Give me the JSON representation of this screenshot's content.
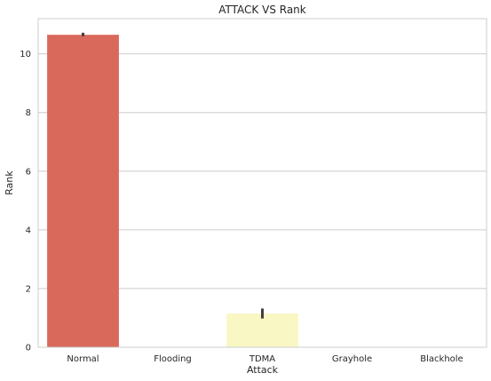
{
  "chart_data": {
    "type": "bar",
    "title": "ATTACK VS Rank",
    "xlabel": "Attack",
    "ylabel": "Rank",
    "categories": [
      "Normal",
      "Flooding",
      "TDMA",
      "Grayhole",
      "Blackhole"
    ],
    "values": [
      10.65,
      0,
      1.15,
      0,
      0
    ],
    "error_bars": [
      {
        "low": 10.6,
        "high": 10.72
      },
      null,
      {
        "low": 0.98,
        "high": 1.32
      },
      null,
      null
    ],
    "yticks": [
      0,
      2,
      4,
      6,
      8,
      10
    ],
    "ylim": [
      0,
      11.2
    ],
    "grid": "horizontal",
    "colors": [
      "#d9695a",
      "#ee8f5a",
      "#f9f7c3",
      "#a4d39e",
      "#5d9bc0"
    ],
    "background": "#ffffff",
    "grid_color": "#cccccc",
    "errorbar_color": "#404040"
  }
}
